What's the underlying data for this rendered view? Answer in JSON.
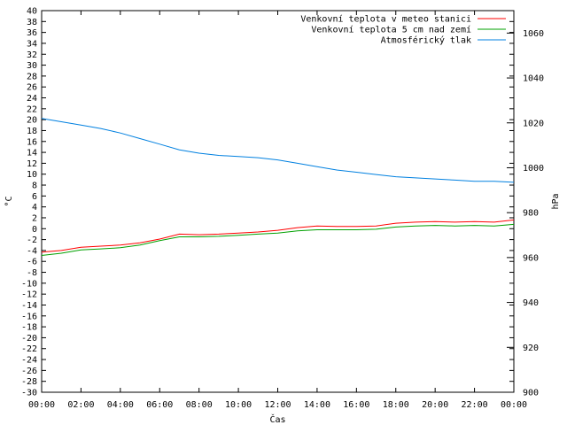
{
  "chart_data": {
    "type": "line",
    "xlabel": "Čas",
    "ylabel": "°C",
    "y2label": "hPa",
    "x_ticks": [
      "00:00",
      "02:00",
      "04:00",
      "06:00",
      "08:00",
      "10:00",
      "12:00",
      "14:00",
      "16:00",
      "18:00",
      "20:00",
      "22:00",
      "00:00"
    ],
    "xlim": [
      0,
      24
    ],
    "ylim": [
      -30,
      40
    ],
    "y2lim": [
      900,
      1070
    ],
    "y_ticks": [
      -30,
      -28,
      -26,
      -24,
      -22,
      -20,
      -18,
      -16,
      -14,
      -12,
      -10,
      -8,
      -6,
      -4,
      -2,
      0,
      2,
      4,
      6,
      8,
      10,
      12,
      14,
      16,
      18,
      20,
      22,
      24,
      26,
      28,
      30,
      32,
      34,
      36,
      38,
      40
    ],
    "y2_ticks": [
      900,
      920,
      940,
      960,
      980,
      1000,
      1020,
      1040,
      1060
    ],
    "grid": false,
    "legend_position": "top-right",
    "series": [
      {
        "name": "Venkovní teplota v meteo stanici",
        "color": "#ff0000",
        "axis": "y",
        "x": [
          0,
          1,
          2,
          3,
          4,
          5,
          6,
          7,
          8,
          9,
          10,
          11,
          12,
          13,
          14,
          15,
          16,
          17,
          18,
          19,
          20,
          21,
          22,
          23,
          24
        ],
        "y": [
          -4.3,
          -4.0,
          -3.4,
          -3.2,
          -3.0,
          -2.6,
          -1.9,
          -1.0,
          -1.1,
          -1.0,
          -0.8,
          -0.6,
          -0.3,
          0.2,
          0.5,
          0.4,
          0.4,
          0.5,
          1.0,
          1.2,
          1.3,
          1.2,
          1.3,
          1.2,
          1.6
        ]
      },
      {
        "name": "Venkovní teplota 5 cm nad zemí",
        "color": "#00a000",
        "axis": "y",
        "x": [
          0,
          1,
          2,
          3,
          4,
          5,
          6,
          7,
          8,
          9,
          10,
          11,
          12,
          13,
          14,
          15,
          16,
          17,
          18,
          19,
          20,
          21,
          22,
          23,
          24
        ],
        "y": [
          -4.9,
          -4.5,
          -3.9,
          -3.7,
          -3.5,
          -3.0,
          -2.2,
          -1.5,
          -1.5,
          -1.4,
          -1.2,
          -1.0,
          -0.8,
          -0.4,
          -0.2,
          -0.2,
          -0.2,
          -0.1,
          0.3,
          0.5,
          0.6,
          0.5,
          0.6,
          0.5,
          0.8
        ]
      },
      {
        "name": "Atmosférický tlak",
        "color": "#0080e0",
        "axis": "y2",
        "x": [
          0,
          1,
          2,
          3,
          4,
          5,
          6,
          7,
          8,
          9,
          10,
          11,
          12,
          13,
          14,
          15,
          16,
          17,
          18,
          19,
          20,
          21,
          22,
          23,
          24
        ],
        "y": [
          1022,
          1020.5,
          1019,
          1017.5,
          1015.5,
          1013,
          1010.5,
          1008,
          1006.5,
          1005.5,
          1005,
          1004.5,
          1003.5,
          1002,
          1000.5,
          999,
          998,
          997,
          996,
          995.5,
          995,
          994.5,
          994,
          994,
          993.5
        ]
      }
    ]
  }
}
